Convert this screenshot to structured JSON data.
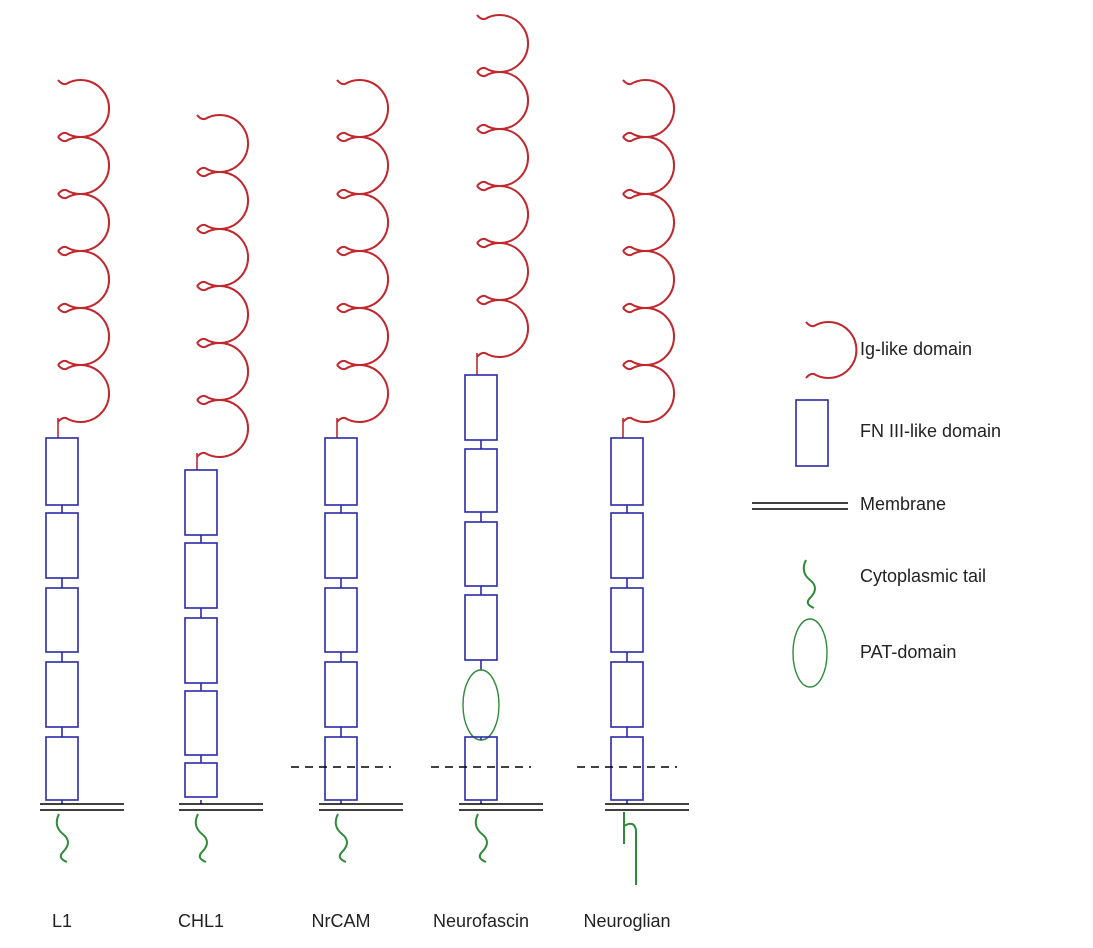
{
  "proteins": [
    "L1",
    "CHL1",
    "NrCAM",
    "Neurofascin",
    "Neuroglian"
  ],
  "legend": [
    "Ig-like domain",
    "FN III-like domain",
    "Membrane",
    "Cytoplasmic tail",
    "PAT-domain"
  ]
}
